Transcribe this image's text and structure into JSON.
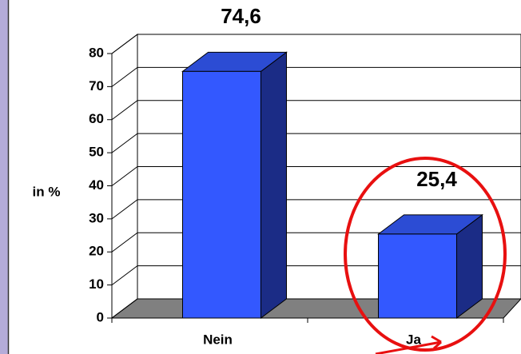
{
  "chart_data": {
    "type": "bar3d",
    "y_label": "in %",
    "categories": [
      "Nein",
      "Ja"
    ],
    "values": [
      74.6,
      25.4
    ],
    "value_labels": [
      "74,6",
      "25,4"
    ],
    "color": "#3358ff",
    "ylim": [
      0,
      80
    ],
    "yticks": [
      0,
      10,
      20,
      30,
      40,
      50,
      60,
      70,
      80
    ],
    "grid": true
  }
}
